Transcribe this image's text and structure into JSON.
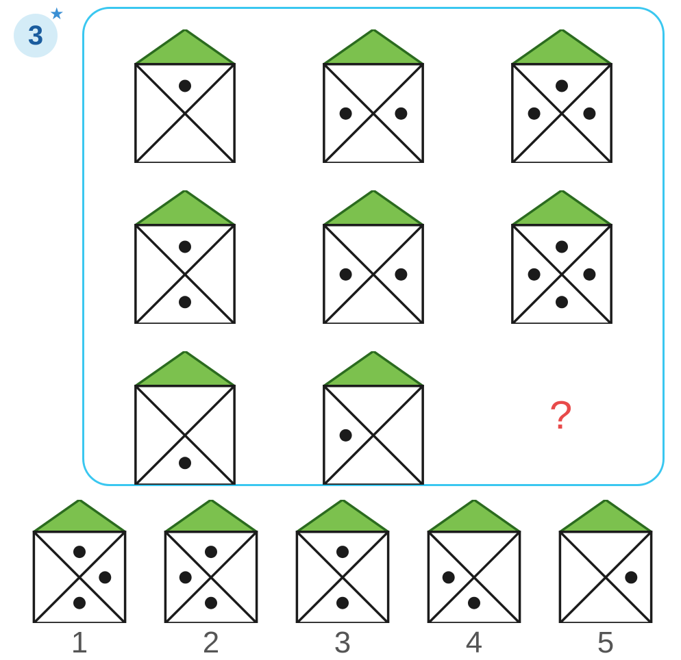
{
  "badge": {
    "number": "3",
    "star": "★"
  },
  "colors": {
    "frame_border": "#3ac7f0",
    "badge_bg": "#d4ecf7",
    "badge_text": "#1a5c9e",
    "star": "#3a8fd4",
    "roof_fill": "#7cc14e",
    "roof_stroke": "#2b6b1f",
    "line_stroke": "#1b1b1b",
    "dot_fill": "#1b1b1b",
    "qmark": "#e84a4a",
    "label": "#555555",
    "bg": "#ffffff"
  },
  "style": {
    "house_line_width": 3.5,
    "roof_line_width": 3.5,
    "dot_radius": 9
  },
  "grid": {
    "rows": 3,
    "cols": 3,
    "cells": [
      {
        "dots": {
          "top": true,
          "left": false,
          "right": false,
          "bottom": false
        }
      },
      {
        "dots": {
          "top": false,
          "left": true,
          "right": true,
          "bottom": false
        }
      },
      {
        "dots": {
          "top": true,
          "left": true,
          "right": true,
          "bottom": false
        }
      },
      {
        "dots": {
          "top": true,
          "left": false,
          "right": false,
          "bottom": true
        }
      },
      {
        "dots": {
          "top": false,
          "left": true,
          "right": true,
          "bottom": false
        }
      },
      {
        "dots": {
          "top": true,
          "left": true,
          "right": true,
          "bottom": true
        }
      },
      {
        "dots": {
          "top": false,
          "left": false,
          "right": false,
          "bottom": true
        }
      },
      {
        "dots": {
          "top": false,
          "left": true,
          "right": false,
          "bottom": false
        }
      },
      {
        "question": true
      }
    ]
  },
  "qmark_text": "?",
  "options": [
    {
      "label": "1",
      "dots": {
        "top": true,
        "left": false,
        "right": true,
        "bottom": true
      }
    },
    {
      "label": "2",
      "dots": {
        "top": true,
        "left": true,
        "right": false,
        "bottom": true
      }
    },
    {
      "label": "3",
      "dots": {
        "top": true,
        "left": false,
        "right": false,
        "bottom": true
      }
    },
    {
      "label": "4",
      "dots": {
        "top": false,
        "left": true,
        "right": false,
        "bottom": true
      }
    },
    {
      "label": "5",
      "dots": {
        "top": false,
        "left": false,
        "right": true,
        "bottom": false
      }
    }
  ]
}
